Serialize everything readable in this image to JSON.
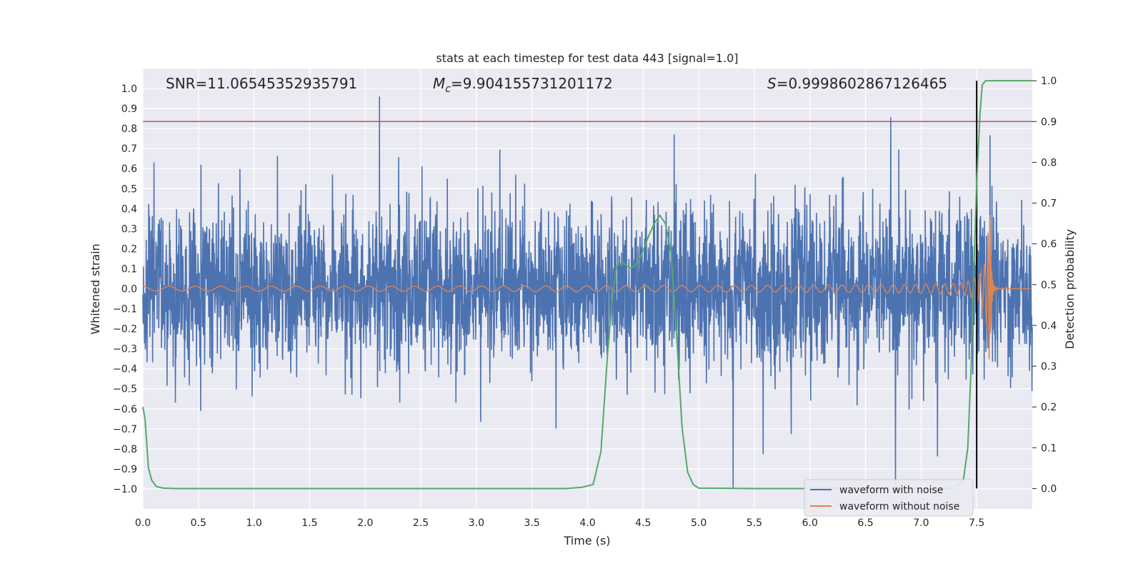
{
  "chart_data": {
    "type": "line",
    "title": "stats at each timestep for test data 443 [signal=1.0]",
    "xlabel": "Time (s)",
    "ylabel": "Whitened strain",
    "y2label": "Detection probability",
    "xlim": [
      0.0,
      8.0
    ],
    "ylim": [
      -1.1,
      1.1
    ],
    "y2lim": [
      -0.05,
      1.03
    ],
    "xticks": [
      0.0,
      0.5,
      1.0,
      1.5,
      2.0,
      2.5,
      3.0,
      3.5,
      4.0,
      4.5,
      5.0,
      5.5,
      6.0,
      6.5,
      7.0,
      7.5
    ],
    "xtick_labels": [
      "0.0",
      "0.5",
      "1.0",
      "1.5",
      "2.0",
      "2.5",
      "3.0",
      "3.5",
      "4.0",
      "4.5",
      "5.0",
      "5.5",
      "6.0",
      "6.5",
      "7.0",
      "7.5"
    ],
    "yticks": [
      1.0,
      0.9,
      0.8,
      0.7,
      0.6,
      0.5,
      0.4,
      0.3,
      0.2,
      0.1,
      0.0,
      -0.1,
      -0.2,
      -0.3,
      -0.4,
      -0.5,
      -0.6,
      -0.7,
      -0.8,
      -0.9,
      -1.0
    ],
    "ytick_labels": [
      "1.0",
      "0.9",
      "0.8",
      "0.7",
      "0.6",
      "0.5",
      "0.4",
      "0.3",
      "0.2",
      "0.1",
      "0.0",
      "−0.1",
      "−0.2",
      "−0.3",
      "−0.4",
      "−0.5",
      "−0.6",
      "−0.7",
      "−0.8",
      "−0.9",
      "−1.0"
    ],
    "y2ticks": [
      1.0,
      0.9,
      0.8,
      0.7,
      0.6,
      0.5,
      0.4,
      0.3,
      0.2,
      0.1,
      0.0
    ],
    "y2tick_labels": [
      "1.0",
      "0.9",
      "0.8",
      "0.7",
      "0.6",
      "0.5",
      "0.4",
      "0.3",
      "0.2",
      "0.1",
      "0.0"
    ],
    "annotations": {
      "snr": "SNR=11.06545352935791",
      "mc_symbol": "M",
      "mc_sub": "c",
      "mc_value": "=9.904155731201172",
      "s_symbol": "S",
      "s_value": "=0.9998602867126465"
    },
    "threshold_y2": 0.9,
    "merger_time": 7.5,
    "series": [
      {
        "name": "waveform with noise",
        "axis": "left",
        "color": "#4c72b0",
        "kind": "noise",
        "envelope_typical": 0.45,
        "max_positive": 0.96,
        "max_negative": -1.0
      },
      {
        "name": "waveform without noise",
        "axis": "left",
        "color": "#dd8452",
        "kind": "chirp",
        "amplitude_start": 0.012,
        "amplitude_peak": 0.37,
        "peak_time": 7.62
      },
      {
        "name": "detection probability",
        "axis": "right",
        "color": "#55a868",
        "x": [
          0.0,
          0.02,
          0.05,
          0.08,
          0.12,
          0.18,
          0.3,
          1.0,
          2.0,
          3.0,
          3.8,
          3.95,
          4.05,
          4.12,
          4.18,
          4.22,
          4.26,
          4.32,
          4.38,
          4.42,
          4.48,
          4.55,
          4.6,
          4.65,
          4.7,
          4.75,
          4.8,
          4.85,
          4.9,
          4.95,
          5.0,
          5.5,
          6.0,
          6.5,
          7.0,
          7.3,
          7.38,
          7.42,
          7.45,
          7.47,
          7.5,
          7.53,
          7.55,
          7.58,
          7.62,
          7.7,
          8.0
        ],
        "values": [
          0.2,
          0.17,
          0.05,
          0.02,
          0.005,
          0.001,
          0.0,
          0.0,
          0.0,
          0.0,
          0.0,
          0.003,
          0.01,
          0.09,
          0.33,
          0.46,
          0.545,
          0.555,
          0.54,
          0.545,
          0.57,
          0.62,
          0.65,
          0.67,
          0.65,
          0.58,
          0.38,
          0.15,
          0.04,
          0.01,
          0.001,
          0.0,
          0.0,
          0.0,
          0.0,
          0.0,
          0.02,
          0.1,
          0.3,
          0.5,
          0.75,
          0.92,
          0.99,
          1.0,
          1.0,
          1.0,
          1.0
        ]
      }
    ],
    "legend": {
      "placement": "lower-right",
      "entries": [
        "waveform with noise",
        "waveform without noise"
      ]
    },
    "colors": {
      "plot_bg": "#eaeaf2",
      "grid": "#ffffff",
      "threshold": "#c44e52",
      "merger_line": "#000000"
    }
  }
}
